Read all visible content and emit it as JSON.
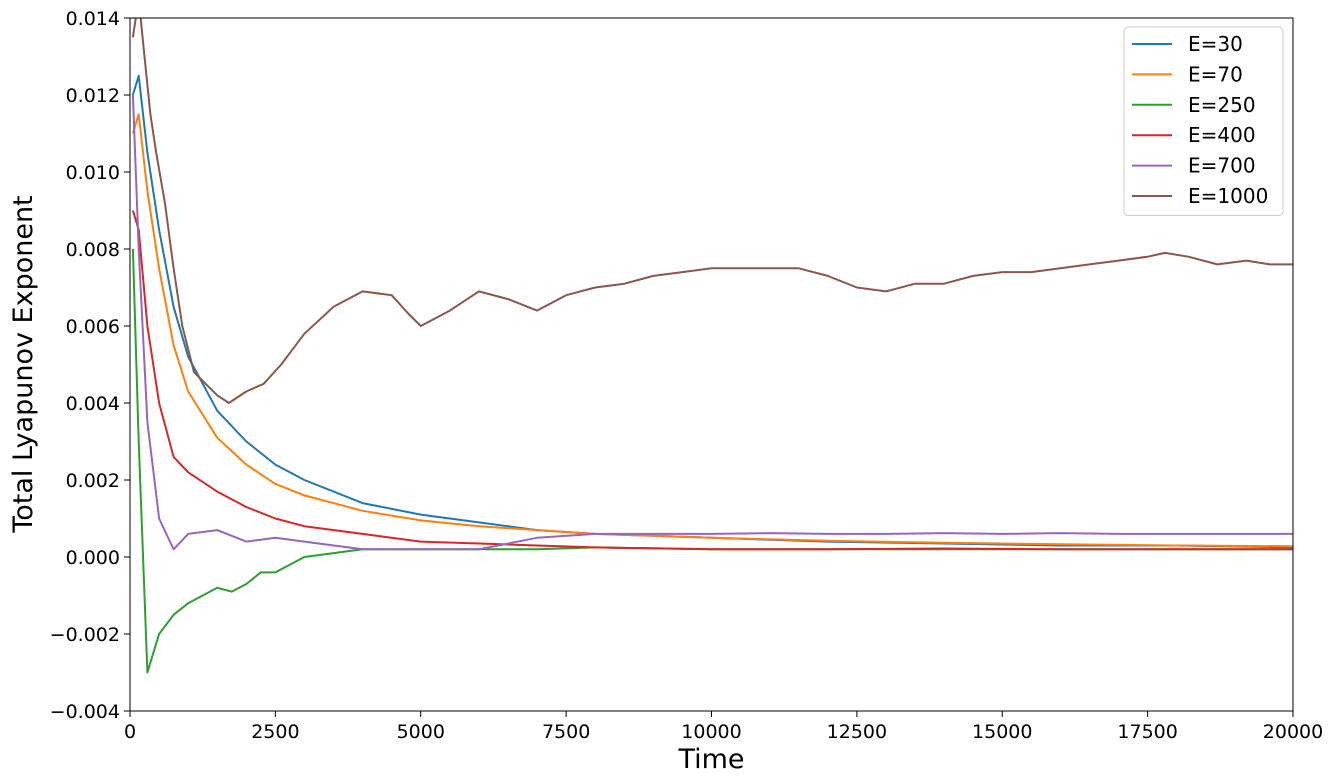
{
  "chart_data": {
    "type": "line",
    "title": "",
    "xlabel": "Time",
    "ylabel": "Total Lyapunov Exponent",
    "xlim": [
      0,
      20000
    ],
    "ylim": [
      -0.004,
      0.014
    ],
    "x_ticks": [
      0,
      2500,
      5000,
      7500,
      10000,
      12500,
      15000,
      17500,
      20000
    ],
    "x_tick_labels": [
      "0",
      "2500",
      "5000",
      "7500",
      "10000",
      "12500",
      "15000",
      "17500",
      "20000"
    ],
    "y_ticks": [
      -0.004,
      -0.002,
      0.0,
      0.002,
      0.004,
      0.006,
      0.008,
      0.01,
      0.012,
      0.014
    ],
    "y_tick_labels": [
      "−0.004",
      "−0.002",
      "0.000",
      "0.002",
      "0.004",
      "0.006",
      "0.008",
      "0.010",
      "0.012",
      "0.014"
    ],
    "grid": false,
    "legend_position": "top-right",
    "series": [
      {
        "name": "E=30",
        "color": "#1f77b4",
        "x": [
          50,
          150,
          300,
          500,
          750,
          1000,
          1500,
          2000,
          2500,
          3000,
          4000,
          5000,
          6000,
          7000,
          8000,
          9000,
          10000,
          12000,
          14000,
          16000,
          18000,
          20000
        ],
        "y": [
          0.012,
          0.0125,
          0.0105,
          0.0085,
          0.0065,
          0.0052,
          0.0038,
          0.003,
          0.0024,
          0.002,
          0.0014,
          0.0011,
          0.0009,
          0.0007,
          0.0006,
          0.00055,
          0.0005,
          0.0004,
          0.00035,
          0.0003,
          0.0003,
          0.00025
        ]
      },
      {
        "name": "E=70",
        "color": "#ff7f0e",
        "x": [
          50,
          150,
          300,
          500,
          750,
          1000,
          1500,
          2000,
          2500,
          3000,
          4000,
          5000,
          6000,
          7000,
          8000,
          9000,
          10000,
          12000,
          14000,
          16000,
          18000,
          20000
        ],
        "y": [
          0.011,
          0.0115,
          0.0095,
          0.0075,
          0.0055,
          0.0043,
          0.0031,
          0.0024,
          0.0019,
          0.0016,
          0.0012,
          0.00095,
          0.0008,
          0.0007,
          0.0006,
          0.00055,
          0.0005,
          0.00042,
          0.00037,
          0.00033,
          0.0003,
          0.00028
        ]
      },
      {
        "name": "E=250",
        "color": "#2ca02c",
        "x": [
          50,
          150,
          300,
          500,
          750,
          1000,
          1250,
          1500,
          1750,
          2000,
          2250,
          2500,
          3000,
          3500,
          4000,
          5000,
          6000,
          7000,
          8000,
          10000,
          12000,
          14000,
          16000,
          18000,
          20000
        ],
        "y": [
          0.008,
          0.003,
          -0.003,
          -0.002,
          -0.0015,
          -0.0012,
          -0.001,
          -0.0008,
          -0.0009,
          -0.0007,
          -0.0004,
          -0.0004,
          0.0,
          0.0001,
          0.0002,
          0.0002,
          0.0002,
          0.0002,
          0.00025,
          0.0002,
          0.0002,
          0.0002,
          0.0002,
          0.0002,
          0.0002
        ]
      },
      {
        "name": "E=400",
        "color": "#d62728",
        "x": [
          50,
          150,
          300,
          500,
          750,
          1000,
          1500,
          2000,
          2500,
          3000,
          4000,
          5000,
          6000,
          7000,
          8000,
          10000,
          12000,
          14000,
          16000,
          18000,
          20000
        ],
        "y": [
          0.009,
          0.0085,
          0.006,
          0.004,
          0.0026,
          0.0022,
          0.0017,
          0.0013,
          0.001,
          0.0008,
          0.0006,
          0.0004,
          0.00035,
          0.0003,
          0.00025,
          0.0002,
          0.0002,
          0.00022,
          0.0002,
          0.0002,
          0.0002
        ]
      },
      {
        "name": "E=700",
        "color": "#9467bd",
        "x": [
          50,
          150,
          300,
          500,
          750,
          1000,
          1500,
          2000,
          2500,
          3000,
          4000,
          5000,
          6000,
          7000,
          8000,
          9000,
          10000,
          11000,
          12000,
          13000,
          14000,
          15000,
          16000,
          17000,
          18000,
          19000,
          20000
        ],
        "y": [
          0.012,
          0.008,
          0.0035,
          0.001,
          0.0002,
          0.0006,
          0.0007,
          0.0004,
          0.0005,
          0.0004,
          0.0002,
          0.0002,
          0.0002,
          0.0005,
          0.0006,
          0.0006,
          0.0006,
          0.00062,
          0.0006,
          0.0006,
          0.00062,
          0.0006,
          0.00062,
          0.0006,
          0.0006,
          0.0006,
          0.0006
        ]
      },
      {
        "name": "E=1000",
        "color": "#8c564b",
        "x": [
          50,
          150,
          250,
          350,
          450,
          600,
          750,
          900,
          1100,
          1300,
          1500,
          1700,
          2000,
          2300,
          2600,
          3000,
          3500,
          4000,
          4500,
          4800,
          5000,
          5500,
          6000,
          6500,
          7000,
          7500,
          8000,
          8500,
          9000,
          9500,
          10000,
          10500,
          11000,
          11500,
          12000,
          12500,
          13000,
          13500,
          14000,
          14500,
          15000,
          15500,
          16000,
          16500,
          17000,
          17500,
          17800,
          18200,
          18700,
          19200,
          19600,
          20000
        ],
        "y": [
          0.0135,
          0.0145,
          0.013,
          0.0115,
          0.0105,
          0.0092,
          0.0075,
          0.006,
          0.0048,
          0.0045,
          0.0042,
          0.004,
          0.0043,
          0.0045,
          0.005,
          0.0058,
          0.0065,
          0.0069,
          0.0068,
          0.0063,
          0.006,
          0.0064,
          0.0069,
          0.0067,
          0.0064,
          0.0068,
          0.007,
          0.0071,
          0.0073,
          0.0074,
          0.0075,
          0.0075,
          0.0075,
          0.0075,
          0.0073,
          0.007,
          0.0069,
          0.0071,
          0.0071,
          0.0073,
          0.0074,
          0.0074,
          0.0075,
          0.0076,
          0.0077,
          0.0078,
          0.0079,
          0.0078,
          0.0076,
          0.0077,
          0.0076,
          0.0076
        ]
      }
    ]
  }
}
